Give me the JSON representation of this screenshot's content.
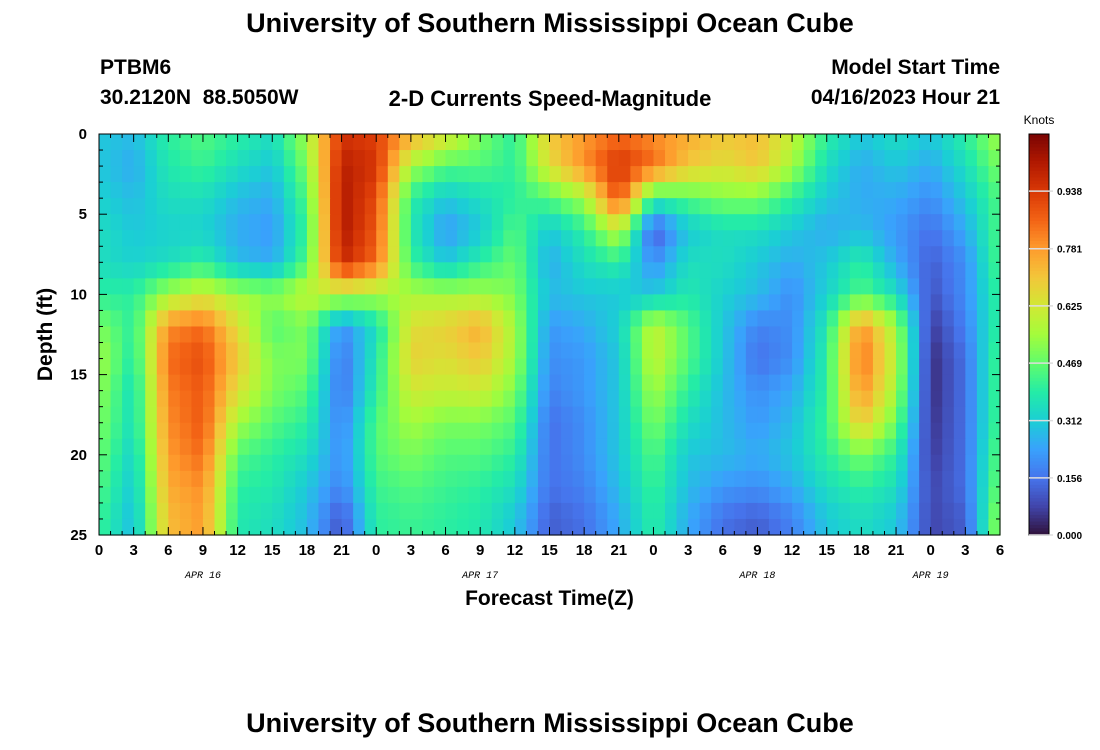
{
  "page": {
    "title": "University of Southern Mississippi Ocean Cube",
    "footer_title": "University of Southern Mississippi Ocean Cube",
    "station_id": "PTBM6",
    "station_coords": "30.2120N  88.5050W",
    "plot_title": "2-D Currents Speed-Magnitude",
    "model_start_label": "Model Start Time",
    "model_start_value": "04/16/2023 Hour 21"
  },
  "chart_data": {
    "type": "heatmap",
    "title": "2-D Currents Speed-Magnitude",
    "xlabel": "Forecast Time(Z)",
    "ylabel": "Depth (ft)",
    "x_tick_labels": [
      "0",
      "3",
      "6",
      "9",
      "12",
      "15",
      "18",
      "21",
      "0",
      "3",
      "6",
      "9",
      "12",
      "15",
      "18",
      "21",
      "0",
      "3",
      "6",
      "9",
      "12",
      "15",
      "18",
      "21",
      "0",
      "3",
      "6"
    ],
    "date_labels": [
      {
        "label": "APR 16",
        "hours": 9
      },
      {
        "label": "APR 17",
        "hours": 33
      },
      {
        "label": "APR 18",
        "hours": 57
      },
      {
        "label": "APR 19",
        "hours": 72
      }
    ],
    "x_range_hours": [
      0,
      78
    ],
    "ylim": [
      0,
      25
    ],
    "y_ticks": [
      0,
      5,
      10,
      15,
      20,
      25
    ],
    "y_inverted": true,
    "colorbar": {
      "title": "Knots",
      "min": 0.0,
      "max": 1.094,
      "ticks": [
        "0.000",
        "0.156",
        "0.312",
        "0.469",
        "0.625",
        "0.781",
        "0.938"
      ],
      "colors": [
        "#30123b",
        "#4145ab",
        "#4675ed",
        "#39a2fc",
        "#1bcfd4",
        "#24eca6",
        "#61fc6c",
        "#a4fc3b",
        "#d1e834",
        "#f3c63a",
        "#fe9b2d",
        "#f36315",
        "#d93806",
        "#b11901",
        "#7a0403"
      ]
    },
    "speed_knots": {
      "depth_ft": [
        0,
        2,
        4,
        6,
        8,
        10,
        12,
        14,
        16,
        18,
        20,
        22,
        24
      ],
      "time_hours": [
        0,
        3,
        6,
        9,
        12,
        15,
        18,
        21,
        24,
        27,
        30,
        33,
        36,
        39,
        42,
        45,
        48,
        51,
        54,
        57,
        60,
        63,
        66,
        69,
        72,
        75,
        78
      ],
      "rows": [
        [
          0.3,
          0.28,
          0.4,
          0.45,
          0.4,
          0.35,
          0.55,
          0.95,
          0.92,
          0.75,
          0.65,
          0.5,
          0.4,
          0.7,
          0.78,
          0.85,
          0.8,
          0.75,
          0.7,
          0.72,
          0.6,
          0.4,
          0.3,
          0.35,
          0.3,
          0.4,
          0.55
        ],
        [
          0.3,
          0.25,
          0.38,
          0.42,
          0.35,
          0.3,
          0.5,
          1.0,
          0.95,
          0.55,
          0.45,
          0.45,
          0.4,
          0.65,
          0.8,
          0.95,
          0.85,
          0.7,
          0.65,
          0.7,
          0.55,
          0.35,
          0.25,
          0.3,
          0.25,
          0.35,
          0.5
        ],
        [
          0.32,
          0.28,
          0.35,
          0.35,
          0.28,
          0.25,
          0.45,
          1.02,
          0.9,
          0.4,
          0.3,
          0.35,
          0.4,
          0.45,
          0.55,
          0.9,
          0.4,
          0.45,
          0.5,
          0.5,
          0.4,
          0.3,
          0.25,
          0.25,
          0.2,
          0.3,
          0.45
        ],
        [
          0.35,
          0.3,
          0.32,
          0.32,
          0.25,
          0.22,
          0.42,
          1.02,
          0.88,
          0.38,
          0.22,
          0.3,
          0.45,
          0.3,
          0.4,
          0.6,
          0.1,
          0.3,
          0.35,
          0.35,
          0.3,
          0.25,
          0.28,
          0.22,
          0.15,
          0.25,
          0.45
        ],
        [
          0.35,
          0.32,
          0.35,
          0.4,
          0.28,
          0.25,
          0.45,
          0.98,
          0.85,
          0.42,
          0.3,
          0.4,
          0.48,
          0.25,
          0.35,
          0.4,
          0.2,
          0.35,
          0.35,
          0.3,
          0.25,
          0.3,
          0.4,
          0.25,
          0.12,
          0.2,
          0.45
        ],
        [
          0.4,
          0.4,
          0.55,
          0.62,
          0.55,
          0.52,
          0.6,
          0.58,
          0.55,
          0.56,
          0.55,
          0.55,
          0.5,
          0.28,
          0.3,
          0.3,
          0.3,
          0.38,
          0.32,
          0.28,
          0.2,
          0.32,
          0.45,
          0.35,
          0.1,
          0.2,
          0.42
        ],
        [
          0.5,
          0.4,
          0.8,
          0.85,
          0.65,
          0.45,
          0.5,
          0.2,
          0.35,
          0.65,
          0.68,
          0.75,
          0.55,
          0.22,
          0.25,
          0.32,
          0.6,
          0.45,
          0.3,
          0.18,
          0.2,
          0.38,
          0.8,
          0.55,
          0.06,
          0.18,
          0.42
        ],
        [
          0.55,
          0.38,
          0.85,
          0.9,
          0.7,
          0.5,
          0.5,
          0.15,
          0.38,
          0.68,
          0.65,
          0.7,
          0.55,
          0.2,
          0.22,
          0.3,
          0.6,
          0.45,
          0.3,
          0.15,
          0.2,
          0.4,
          0.85,
          0.58,
          0.04,
          0.15,
          0.45
        ],
        [
          0.52,
          0.35,
          0.82,
          0.88,
          0.65,
          0.5,
          0.45,
          0.15,
          0.4,
          0.62,
          0.6,
          0.62,
          0.5,
          0.18,
          0.22,
          0.3,
          0.55,
          0.4,
          0.28,
          0.2,
          0.25,
          0.4,
          0.8,
          0.55,
          0.04,
          0.15,
          0.45
        ],
        [
          0.5,
          0.35,
          0.8,
          0.88,
          0.55,
          0.45,
          0.4,
          0.18,
          0.45,
          0.55,
          0.5,
          0.5,
          0.45,
          0.15,
          0.2,
          0.3,
          0.5,
          0.35,
          0.28,
          0.22,
          0.28,
          0.42,
          0.7,
          0.48,
          0.05,
          0.15,
          0.45
        ],
        [
          0.48,
          0.32,
          0.78,
          0.85,
          0.45,
          0.4,
          0.35,
          0.2,
          0.45,
          0.5,
          0.45,
          0.45,
          0.4,
          0.15,
          0.2,
          0.3,
          0.45,
          0.3,
          0.28,
          0.25,
          0.3,
          0.4,
          0.5,
          0.4,
          0.06,
          0.15,
          0.48
        ],
        [
          0.45,
          0.3,
          0.75,
          0.8,
          0.4,
          0.38,
          0.3,
          0.18,
          0.42,
          0.45,
          0.42,
          0.4,
          0.35,
          0.15,
          0.18,
          0.28,
          0.42,
          0.28,
          0.22,
          0.2,
          0.25,
          0.35,
          0.4,
          0.35,
          0.08,
          0.15,
          0.5
        ],
        [
          0.42,
          0.28,
          0.72,
          0.78,
          0.38,
          0.35,
          0.28,
          0.1,
          0.4,
          0.42,
          0.4,
          0.38,
          0.3,
          0.12,
          0.15,
          0.25,
          0.4,
          0.25,
          0.15,
          0.12,
          0.18,
          0.3,
          0.35,
          0.3,
          0.08,
          0.12,
          0.55
        ]
      ]
    }
  }
}
